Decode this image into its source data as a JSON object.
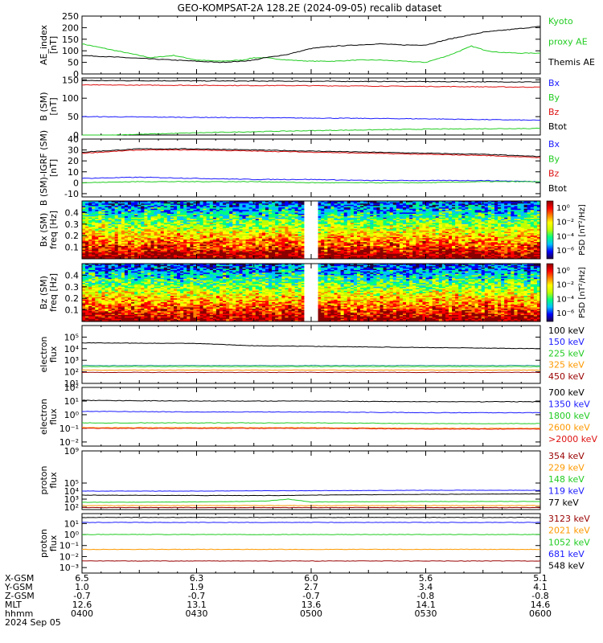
{
  "title": "GEO-KOMPSAT-2A 128.2E (2024-09-05) recalib dataset",
  "colors": {
    "black": "#000000",
    "blue": "#1a1aff",
    "green": "#22cc22",
    "red": "#dd1111",
    "orange": "#ff9900",
    "darkred": "#990000",
    "lime": "#33dd33",
    "teal": "#3aa0a0"
  },
  "chart_data": [
    {
      "type": "line",
      "id": "ae",
      "ylabel": [
        "AE_index",
        "[nT]"
      ],
      "ylim": [
        0,
        250
      ],
      "yticks": [
        "0",
        "50",
        "100",
        "150",
        "200",
        "250"
      ],
      "x_hours": [
        0,
        0.1,
        0.2,
        0.3,
        0.4,
        0.5,
        0.6,
        0.7,
        0.75,
        0.8,
        0.9,
        1.0,
        1.1,
        1.2,
        1.3,
        1.4,
        1.5,
        1.6,
        1.7,
        1.75,
        1.8,
        1.9,
        2.0
      ],
      "legend": [
        {
          "text": "Kyoto",
          "color": "#22cc22"
        },
        {
          "text": "proxy AE",
          "color": "#22cc22"
        },
        {
          "text": "Themis AE",
          "color": "#000000"
        }
      ],
      "series": [
        {
          "color": "#22cc22",
          "values": [
            130,
            110,
            90,
            70,
            80,
            60,
            55,
            60,
            70,
            70,
            60,
            55,
            55,
            60,
            60,
            55,
            50,
            80,
            120,
            105,
            95,
            90,
            90
          ]
        },
        {
          "color": "#000000",
          "values": [
            80,
            75,
            70,
            65,
            60,
            55,
            50,
            55,
            60,
            70,
            85,
            110,
            120,
            125,
            130,
            125,
            125,
            150,
            170,
            180,
            185,
            195,
            205
          ]
        }
      ]
    },
    {
      "type": "line",
      "id": "bsm",
      "ylabel": [
        "B (SM)",
        "[nT]"
      ],
      "ylim": [
        0,
        155
      ],
      "yticks": [
        "0",
        "50",
        "100",
        "150"
      ],
      "x_hours": [
        0,
        0.5,
        1.0,
        1.5,
        2.0
      ],
      "legend": [
        {
          "text": "Bx",
          "color": "#1a1aff"
        },
        {
          "text": "By",
          "color": "#22cc22"
        },
        {
          "text": "Bz",
          "color": "#dd1111"
        },
        {
          "text": "Btot",
          "color": "#000000"
        }
      ],
      "series": [
        {
          "color": "#000000",
          "values": [
            148,
            147,
            146,
            145,
            144
          ]
        },
        {
          "color": "#dd1111",
          "values": [
            136,
            135,
            134,
            132,
            130
          ]
        },
        {
          "color": "#1a1aff",
          "values": [
            50,
            48,
            46,
            44,
            40
          ]
        },
        {
          "color": "#22cc22",
          "values": [
            -2,
            6,
            12,
            16,
            18
          ]
        }
      ]
    },
    {
      "type": "line",
      "id": "bdiff",
      "ylabel": [
        "B (SM)-IGRF (SM)",
        "[nT]"
      ],
      "ylim": [
        -13,
        40
      ],
      "yticks": [
        "-10",
        "0",
        "10",
        "20",
        "30",
        "40"
      ],
      "x_hours": [
        0,
        0.25,
        0.5,
        0.75,
        1.0,
        1.25,
        1.5,
        1.75,
        2.0
      ],
      "legend": [
        {
          "text": "Bx",
          "color": "#1a1aff"
        },
        {
          "text": "By",
          "color": "#22cc22"
        },
        {
          "text": "Bz",
          "color": "#dd1111"
        },
        {
          "text": "Btot",
          "color": "#000000"
        }
      ],
      "series": [
        {
          "color": "#000000",
          "values": [
            28,
            31,
            31,
            30,
            29,
            28,
            27,
            26,
            24
          ]
        },
        {
          "color": "#dd1111",
          "values": [
            27,
            30,
            30,
            29,
            28,
            27,
            26,
            25,
            23
          ]
        },
        {
          "color": "#1a1aff",
          "values": [
            4,
            5,
            4,
            3,
            3,
            2,
            2,
            2,
            1
          ]
        },
        {
          "color": "#22cc22",
          "values": [
            0,
            1,
            1,
            1,
            0,
            0,
            0,
            1,
            1
          ]
        }
      ]
    },
    {
      "type": "heatmap",
      "id": "bx-psd",
      "ylabel": [
        "Bx (SM)",
        "freq [Hz]"
      ],
      "ylim": [
        0,
        0.5
      ],
      "yticks": [
        "0.1",
        "0.2",
        "0.3",
        "0.4"
      ],
      "gap_hours": [
        0.97,
        1.03
      ],
      "colorbar_label": "PSD [nT²/Hz]",
      "colorbar_ticks": [
        "10⁰",
        "10⁻²",
        "10⁻⁴",
        "10⁻⁶"
      ]
    },
    {
      "type": "heatmap",
      "id": "bz-psd",
      "ylabel": [
        "Bz (SM)",
        "freq [Hz]"
      ],
      "ylim": [
        0,
        0.5
      ],
      "yticks": [
        "0.1",
        "0.2",
        "0.3",
        "0.4"
      ],
      "gap_hours": [
        0.97,
        1.03
      ],
      "colorbar_label": "PSD [nT²/Hz]",
      "colorbar_ticks": [
        "10⁰",
        "10⁻²",
        "10⁻⁴",
        "10⁻⁶"
      ]
    },
    {
      "type": "line",
      "id": "e-flux-low",
      "yscale": "log",
      "ylabel": [
        "electron",
        "flux"
      ],
      "ylim_log": [
        1,
        6
      ],
      "yticks": [
        "10¹",
        "10²",
        "10³",
        "10⁴",
        "10⁵"
      ],
      "x_hours": [
        0,
        0.5,
        0.75,
        1.0,
        1.5,
        2.0
      ],
      "legend": [
        {
          "text": "100 keV",
          "color": "#000000"
        },
        {
          "text": "150 keV",
          "color": "#1a1aff"
        },
        {
          "text": "225 keV",
          "color": "#22cc22"
        },
        {
          "text": "325 keV",
          "color": "#ff9900"
        },
        {
          "text": "450 keV",
          "color": "#990000"
        }
      ],
      "series": [
        {
          "color": "#000000",
          "values": [
            4.5,
            4.45,
            4.25,
            4.2,
            4.1,
            4.0
          ]
        },
        {
          "color": "#3aa0a0",
          "values": [
            2.55,
            2.55,
            2.55,
            2.55,
            2.55,
            2.55
          ]
        },
        {
          "color": "#22cc22",
          "values": [
            2.45,
            2.45,
            2.45,
            2.45,
            2.45,
            2.45
          ]
        },
        {
          "color": "#ff9900",
          "values": [
            2.15,
            2.15,
            2.15,
            2.15,
            2.15,
            2.15
          ]
        },
        {
          "color": "#990000",
          "values": [
            1.95,
            1.95,
            1.95,
            1.95,
            1.95,
            1.95
          ]
        }
      ]
    },
    {
      "type": "line",
      "id": "e-flux-high",
      "yscale": "log",
      "ylabel": [
        "electron",
        "flux"
      ],
      "ylim_log": [
        -2.3,
        2
      ],
      "yticks": [
        "10⁻²",
        "10⁻¹",
        "10⁰",
        "10¹",
        "10²"
      ],
      "x_hours": [
        0,
        0.5,
        1.0,
        1.5,
        2.0
      ],
      "legend": [
        {
          "text": "700 keV",
          "color": "#000000"
        },
        {
          "text": "1350 keV",
          "color": "#1a1aff"
        },
        {
          "text": "1800 keV",
          "color": "#22cc22"
        },
        {
          "text": "2600 keV",
          "color": "#ff9900"
        },
        {
          "text": ">2000 keV",
          "color": "#dd1111"
        }
      ],
      "series": [
        {
          "color": "#000000",
          "values": [
            1.05,
            1.0,
            1.0,
            0.95,
            0.95
          ]
        },
        {
          "color": "#1a1aff",
          "values": [
            0.25,
            0.2,
            0.2,
            0.15,
            0.15
          ]
        },
        {
          "color": "#22cc22",
          "values": [
            -0.6,
            -0.6,
            -0.6,
            -0.65,
            -0.65
          ]
        },
        {
          "color": "#ff9900",
          "values": [
            -0.95,
            -0.95,
            -0.95,
            -1.0,
            -1.0
          ]
        },
        {
          "color": "#dd1111",
          "values": [
            -1.0,
            -1.0,
            -1.0,
            -1.05,
            -1.05
          ]
        }
      ]
    },
    {
      "type": "line",
      "id": "p-flux-low",
      "yscale": "log",
      "ylabel": [
        "proton",
        "flux"
      ],
      "ylim_log": [
        1.7,
        9
      ],
      "yticks": [
        "10²",
        "10³",
        "10⁴",
        "10⁵",
        "10⁹"
      ],
      "x_hours": [
        0,
        0.5,
        0.8,
        0.9,
        1.0,
        1.5,
        2.0
      ],
      "legend": [
        {
          "text": "354 keV",
          "color": "#990000"
        },
        {
          "text": "229 keV",
          "color": "#ff9900"
        },
        {
          "text": "148 keV",
          "color": "#22cc22"
        },
        {
          "text": "119 keV",
          "color": "#1a1aff"
        },
        {
          "text": "77 keV",
          "color": "#000000"
        }
      ],
      "series": [
        {
          "color": "#1a1aff",
          "values": [
            4.0,
            4.0,
            4.05,
            4.05,
            4.05,
            4.1,
            4.1
          ]
        },
        {
          "color": "#000000",
          "values": [
            3.5,
            3.45,
            3.45,
            3.45,
            3.5,
            3.6,
            3.65
          ]
        },
        {
          "color": "#22cc22",
          "values": [
            2.6,
            2.65,
            2.75,
            3.0,
            2.65,
            2.7,
            2.7
          ]
        },
        {
          "color": "#ff9900",
          "values": [
            2.2,
            2.2,
            2.2,
            2.2,
            2.2,
            2.2,
            2.2
          ]
        },
        {
          "color": "#990000",
          "values": [
            1.95,
            1.95,
            1.95,
            1.95,
            1.95,
            1.95,
            1.95
          ]
        }
      ]
    },
    {
      "type": "line",
      "id": "p-flux-high",
      "yscale": "log",
      "ylabel": [
        "proton",
        "flux"
      ],
      "ylim_log": [
        -3.5,
        1.9
      ],
      "yticks": [
        "10⁻³",
        "10⁻²",
        "10⁻¹",
        "10⁰",
        "10¹"
      ],
      "x_hours": [
        0,
        0.5,
        1.0,
        1.5,
        2.0
      ],
      "legend": [
        {
          "text": "3123 keV",
          "color": "#990000"
        },
        {
          "text": "2021 keV",
          "color": "#ff9900"
        },
        {
          "text": "1052 keV",
          "color": "#22cc22"
        },
        {
          "text": "681 keV",
          "color": "#1a1aff"
        },
        {
          "text": "548 keV",
          "color": "#000000"
        }
      ],
      "series": [
        {
          "color": "#000000",
          "values": [
            1.55,
            1.55,
            1.55,
            1.55,
            1.55
          ]
        },
        {
          "color": "#1a1aff",
          "values": [
            1.1,
            1.1,
            1.1,
            1.1,
            1.1
          ]
        },
        {
          "color": "#22cc22",
          "values": [
            0.0,
            0.0,
            0.0,
            0.0,
            0.0
          ]
        },
        {
          "color": "#ff9900",
          "values": [
            -1.35,
            -1.35,
            -1.35,
            -1.35,
            -1.35
          ]
        },
        {
          "color": "#990000",
          "values": [
            -2.4,
            -2.4,
            -2.4,
            -2.4,
            -2.4
          ]
        }
      ]
    }
  ],
  "ephemeris": {
    "row_labels": [
      "X-GSM",
      "Y-GSM",
      "Z-GSM",
      "MLT",
      "hhmm"
    ],
    "columns": [
      {
        "values": [
          "6.5",
          "1.0",
          "-0.7",
          "12.6",
          "0400"
        ]
      },
      {
        "values": [
          "6.3",
          "1.9",
          "-0.7",
          "13.1",
          "0430"
        ]
      },
      {
        "values": [
          "6.0",
          "2.7",
          "-0.7",
          "13.6",
          "0500"
        ]
      },
      {
        "values": [
          "5.6",
          "3.4",
          "-0.8",
          "14.1",
          "0530"
        ]
      },
      {
        "values": [
          "5.1",
          "4.1",
          "-0.8",
          "14.6",
          "0600"
        ]
      }
    ],
    "date": "2024 Sep 05"
  }
}
